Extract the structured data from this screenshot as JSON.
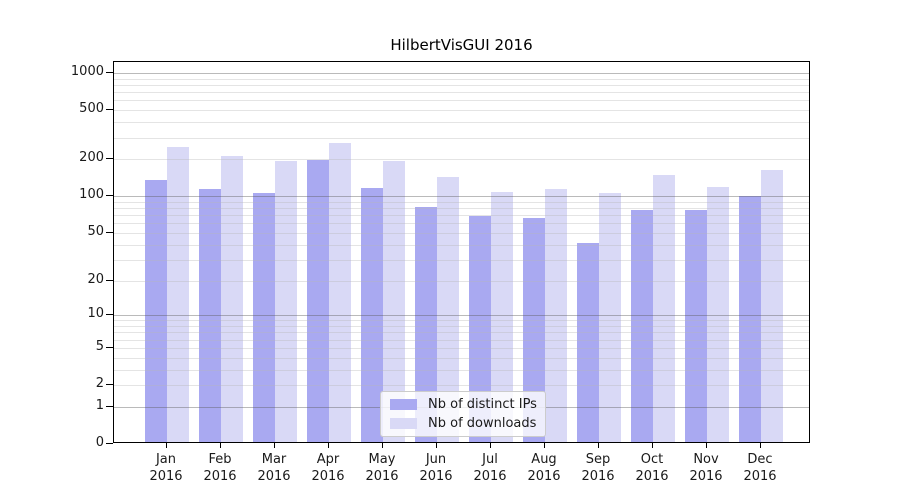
{
  "chart_data": {
    "type": "bar",
    "title": "HilbertVisGUI 2016",
    "categories": [
      "Jan 2016",
      "Feb 2016",
      "Mar 2016",
      "Apr 2016",
      "May 2016",
      "Jun 2016",
      "Jul 2016",
      "Aug 2016",
      "Sep 2016",
      "Oct 2016",
      "Nov 2016",
      "Dec 2016"
    ],
    "series": [
      {
        "name": "Nb of distinct IPs",
        "color": "#a9a9f1",
        "values": [
          130,
          110,
          103,
          190,
          113,
          79,
          66,
          64,
          40,
          75,
          75,
          97
        ]
      },
      {
        "name": "Nb of downloads",
        "color": "#d9d9f6",
        "values": [
          242,
          204,
          186,
          262,
          188,
          139,
          104,
          110,
          102,
          143,
          115,
          158
        ]
      }
    ],
    "xlabel": "",
    "ylabel": "",
    "yscale": "log1p",
    "ylim": [
      0,
      1230
    ],
    "yticks": [
      0,
      1,
      2,
      5,
      10,
      20,
      50,
      100,
      200,
      500,
      1000
    ],
    "yticks_emphasized": [
      1,
      10,
      100,
      1000
    ],
    "yticks_minor": [
      3,
      4,
      6,
      7,
      8,
      9,
      30,
      40,
      60,
      70,
      80,
      90,
      300,
      400,
      600,
      700,
      800,
      900
    ],
    "grid": "on",
    "legend_position": "lower center"
  },
  "colors": {
    "background": "#ffffff",
    "spine": "#000000",
    "grid_decade": "rgba(90,90,90,0.42)",
    "grid_minor": "rgba(185,185,185,0.38)",
    "tick_text": "#1a1a1a",
    "legend_border": "#cccccc"
  }
}
